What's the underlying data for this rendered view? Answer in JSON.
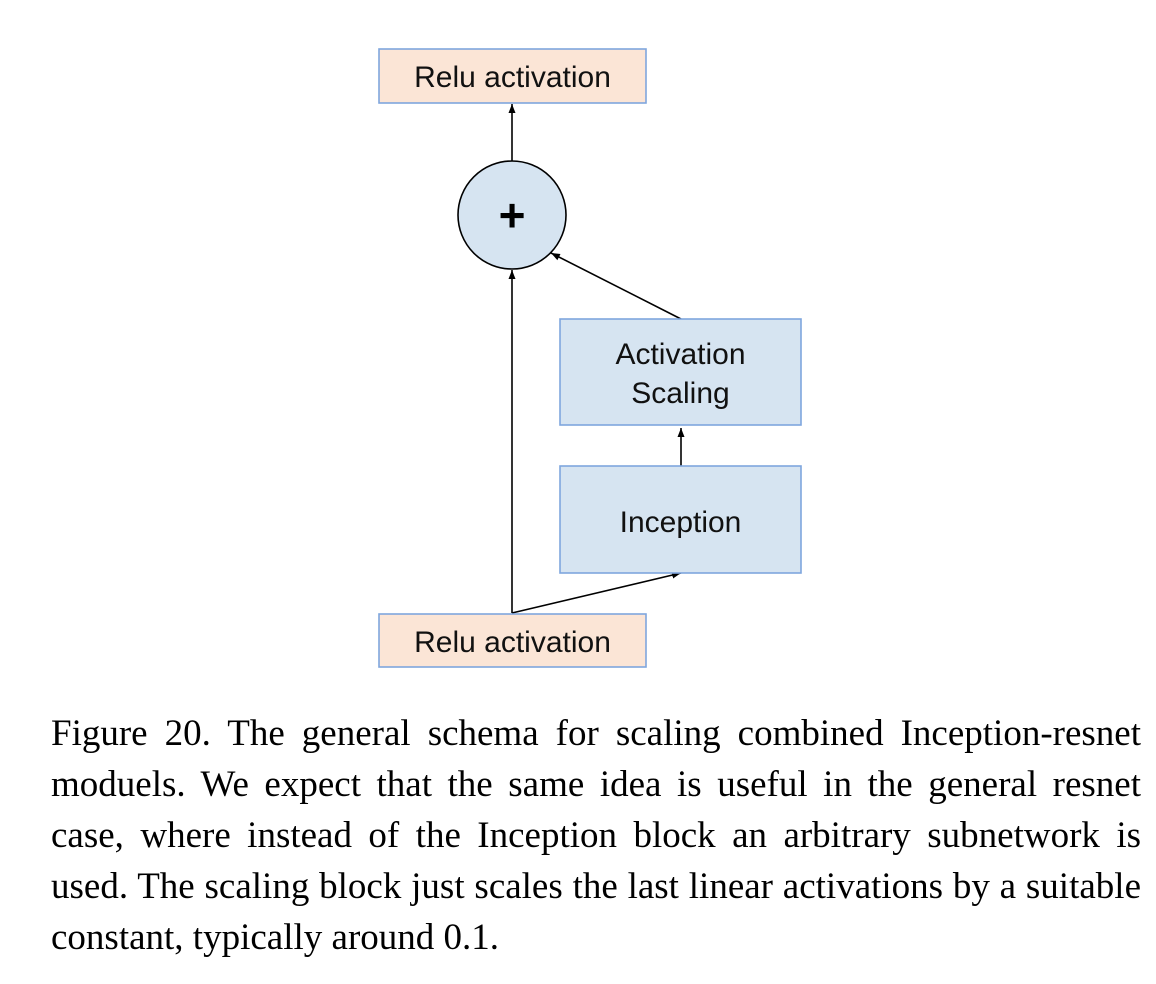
{
  "diagram": {
    "top_box": {
      "label": "Relu activation"
    },
    "sum_node": {
      "symbol": "+"
    },
    "scaling_box": {
      "line1": "Activation",
      "line2": "Scaling"
    },
    "inception_box": {
      "label": "Inception"
    },
    "bottom_box": {
      "label": "Relu activation"
    },
    "colors": {
      "relu_fill": "#fbe5d6",
      "block_fill": "#d6e4f1",
      "box_border": "#7fa6de",
      "node_stroke": "#000000",
      "arrow": "#000000"
    }
  },
  "caption": {
    "text": "Figure 20. The general schema for scaling combined Inception-resnet moduels. We expect that the same idea is useful in the general resnet case, where instead of the Inception block an arbitrary subnetwork is used.  The scaling block just scales the last linear activations by a suitable constant, typically around 0.1."
  }
}
